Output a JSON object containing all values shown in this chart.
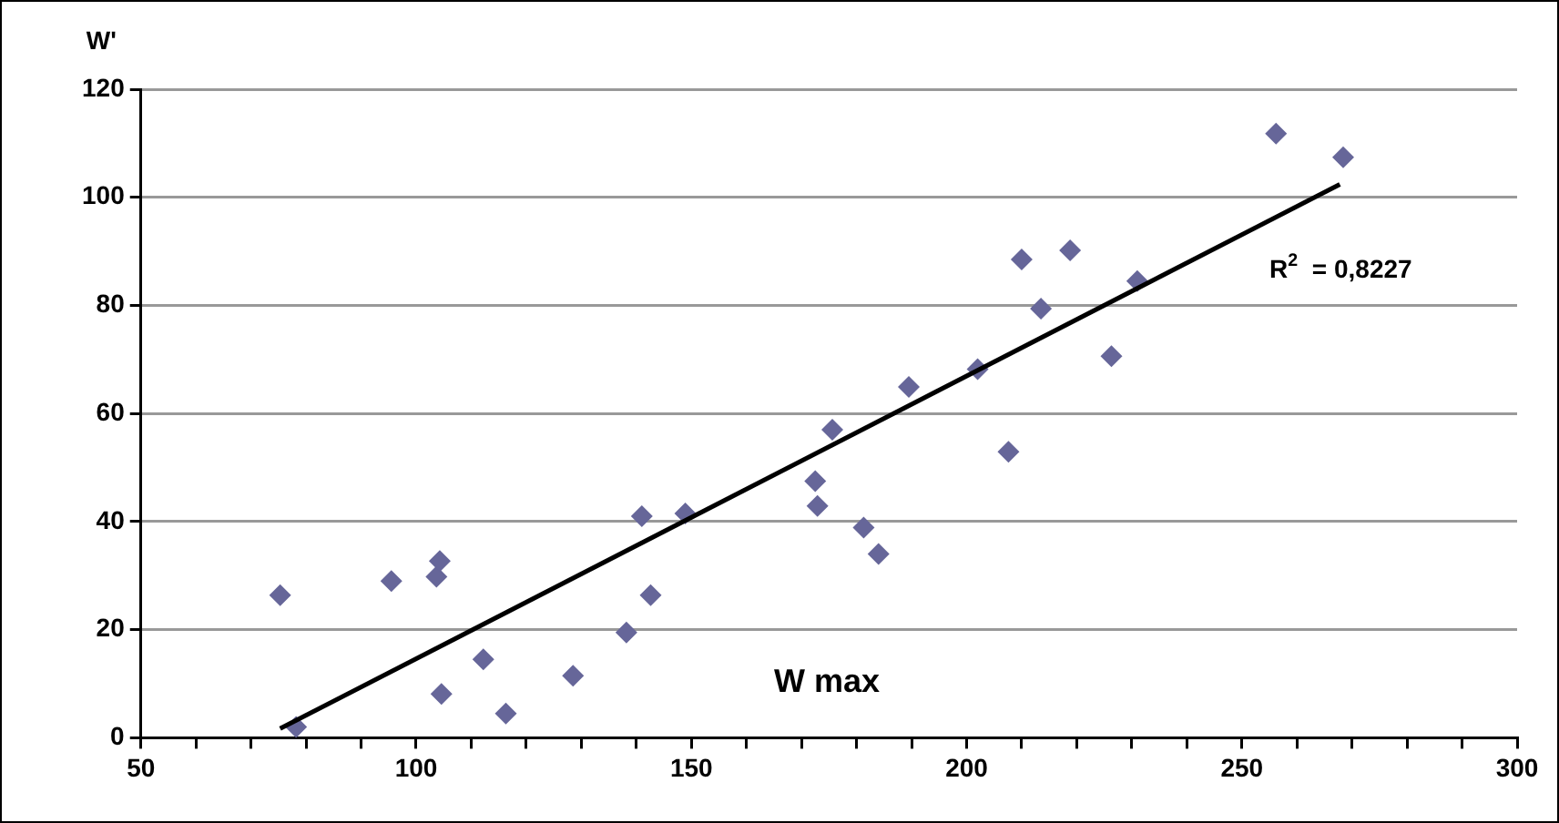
{
  "chart_data": {
    "type": "scatter",
    "xlabel": "W max",
    "ylabel": "W'",
    "xlim": [
      50,
      300
    ],
    "ylim": [
      0,
      120
    ],
    "xticks": [
      50,
      {
        "value": 60,
        "label": null
      },
      {
        "value": 70,
        "label": null
      },
      {
        "value": 80,
        "label": null
      },
      {
        "value": 90,
        "label": null
      },
      100,
      {
        "value": 110,
        "label": null
      },
      {
        "value": 120,
        "label": null
      },
      {
        "value": 130,
        "label": null
      },
      {
        "value": 140,
        "label": null
      },
      150,
      {
        "value": 160,
        "label": null
      },
      {
        "value": 170,
        "label": null
      },
      {
        "value": 180,
        "label": null
      },
      {
        "value": 190,
        "label": null
      },
      200,
      {
        "value": 210,
        "label": null
      },
      {
        "value": 220,
        "label": null
      },
      {
        "value": 230,
        "label": null
      },
      {
        "value": 240,
        "label": null
      },
      250,
      {
        "value": 260,
        "label": null
      },
      {
        "value": 270,
        "label": null
      },
      {
        "value": 280,
        "label": null
      },
      {
        "value": 290,
        "label": null
      },
      300
    ],
    "yticks": [
      0,
      20,
      40,
      60,
      80,
      100,
      120
    ],
    "grid": "y",
    "legend": false,
    "marker": "diamond",
    "annotations": [
      "R$^{2}$ = 0,8227"
    ],
    "series": [
      {
        "type": "scatter",
        "color": "#666699",
        "x": [
          75.3,
          78.2,
          95.5,
          103.7,
          104.3,
          104.6,
          112.2,
          116.3,
          128.5,
          138.2,
          141,
          142.6,
          148.9,
          172.5,
          172.9,
          175.6,
          181.3,
          184,
          189.5,
          202,
          207.6,
          210,
          213.5,
          218.8,
          226.3,
          231,
          256.2,
          268.4
        ],
        "values": [
          26.4,
          2,
          29,
          29.8,
          32.7,
          8.1,
          14.5,
          4.5,
          11.5,
          19.5,
          41,
          26.4,
          41.5,
          47.5,
          42.9,
          57,
          38.9,
          34,
          64.9,
          68.2,
          52.9,
          88.5,
          79.4,
          90.2,
          70.6,
          84.5,
          111.8,
          107.4
        ]
      },
      {
        "type": "line",
        "color": "#000000",
        "marker": "none",
        "line_style": "solid",
        "x": [
          75.3,
          267.8
        ],
        "values": [
          1.7,
          102.4
        ]
      }
    ]
  }
}
